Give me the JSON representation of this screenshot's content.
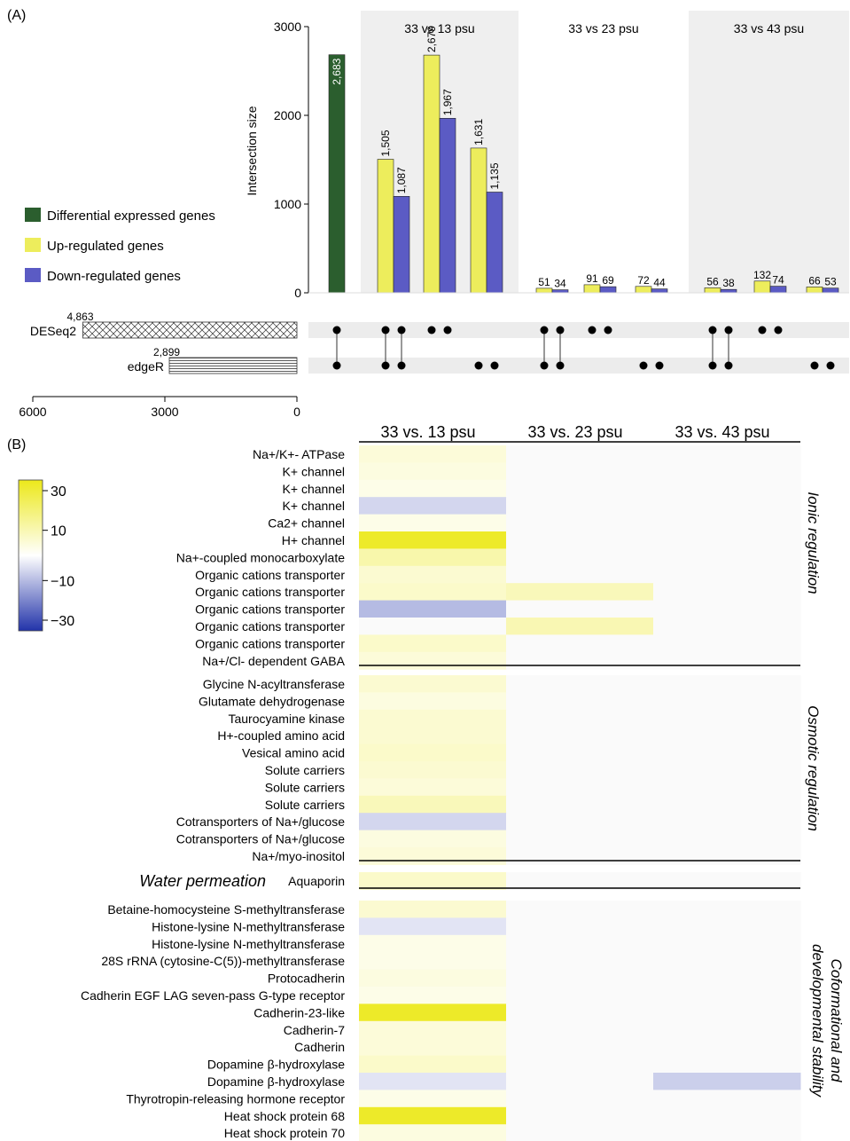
{
  "colors": {
    "green": "#2b5e2e",
    "yellow": "#eded5c",
    "blue": "#5b5bc4",
    "band_shade": "#efefef",
    "row_shade": "#ececec",
    "heat_low": "#2233aa",
    "heat_mid": "#ffffff",
    "heat_high": "#ece81a"
  },
  "panel_a": {
    "label": "(A)",
    "legend": [
      {
        "label": "Differential expressed genes",
        "color": "green"
      },
      {
        "label": "Up-regulated genes",
        "color": "yellow"
      },
      {
        "label": "Down-regulated genes",
        "color": "blue"
      }
    ],
    "set_labels": [
      {
        "name": "DESeq2",
        "count": "4,863"
      },
      {
        "name": "edgeR",
        "count": "2,899"
      }
    ],
    "set_axis_ticks": [
      "6000",
      "3000",
      "0"
    ]
  },
  "panel_b": {
    "label": "(B)",
    "colorbar_ticks": [
      "30",
      "10",
      "−10",
      "−30"
    ],
    "section_labels": [
      "Ionic regulation",
      "Osmotic regulation",
      "Coformational and",
      "developmental stability"
    ],
    "water_label": "Water permeation"
  },
  "chart_data": [
    {
      "type": "bar",
      "subtype": "upset",
      "ylabel": "Intersection size",
      "ylim": [
        0,
        3000
      ],
      "yticks": [
        0,
        1000,
        2000,
        3000
      ],
      "groups": [
        "33 vs 13 psu",
        "33 vs 23 psu",
        "33 vs 43 psu"
      ],
      "set_sizes": {
        "DESeq2": 4863,
        "edgeR": 2899
      },
      "set_axis_range": [
        6000,
        0
      ],
      "columns": [
        {
          "group": null,
          "sets": [
            "DESeq2",
            "edgeR"
          ],
          "bars": [
            {
              "series": "Differential expressed genes",
              "value": 2683,
              "label": "2,683"
            }
          ]
        },
        {
          "group": "33 vs 13 psu",
          "sets": [
            "DESeq2",
            "edgeR"
          ],
          "bars": [
            {
              "series": "Up-regulated genes",
              "value": 1505,
              "label": "1,505"
            },
            {
              "series": "Down-regulated genes",
              "value": 1087,
              "label": "1,087"
            }
          ]
        },
        {
          "group": "33 vs 13 psu",
          "sets": [
            "DESeq2"
          ],
          "bars": [
            {
              "series": "Up-regulated genes",
              "value": 2679,
              "label": "2,679"
            },
            {
              "series": "Down-regulated genes",
              "value": 1967,
              "label": "1,967"
            }
          ]
        },
        {
          "group": "33 vs 13 psu",
          "sets": [
            "edgeR"
          ],
          "bars": [
            {
              "series": "Up-regulated genes",
              "value": 1631,
              "label": "1,631"
            },
            {
              "series": "Down-regulated genes",
              "value": 1135,
              "label": "1,135"
            }
          ]
        },
        {
          "group": "33 vs 23 psu",
          "sets": [
            "DESeq2",
            "edgeR"
          ],
          "bars": [
            {
              "series": "Up-regulated genes",
              "value": 51,
              "label": "51"
            },
            {
              "series": "Down-regulated genes",
              "value": 34,
              "label": "34"
            }
          ]
        },
        {
          "group": "33 vs 23 psu",
          "sets": [
            "DESeq2"
          ],
          "bars": [
            {
              "series": "Up-regulated genes",
              "value": 91,
              "label": "91"
            },
            {
              "series": "Down-regulated genes",
              "value": 69,
              "label": "69"
            }
          ]
        },
        {
          "group": "33 vs 23 psu",
          "sets": [
            "edgeR"
          ],
          "bars": [
            {
              "series": "Up-regulated genes",
              "value": 72,
              "label": "72"
            },
            {
              "series": "Down-regulated genes",
              "value": 44,
              "label": "44"
            }
          ]
        },
        {
          "group": "33 vs 43 psu",
          "sets": [
            "DESeq2",
            "edgeR"
          ],
          "bars": [
            {
              "series": "Up-regulated genes",
              "value": 56,
              "label": "56"
            },
            {
              "series": "Down-regulated genes",
              "value": 38,
              "label": "38"
            }
          ]
        },
        {
          "group": "33 vs 43 psu",
          "sets": [
            "DESeq2"
          ],
          "bars": [
            {
              "series": "Up-regulated genes",
              "value": 132,
              "label": "132"
            },
            {
              "series": "Down-regulated genes",
              "value": 74,
              "label": "74"
            }
          ]
        },
        {
          "group": "33 vs 43 psu",
          "sets": [
            "edgeR"
          ],
          "bars": [
            {
              "series": "Up-regulated genes",
              "value": 66,
              "label": "66"
            },
            {
              "series": "Down-regulated genes",
              "value": 53,
              "label": "53"
            }
          ]
        }
      ]
    },
    {
      "type": "heatmap",
      "columns": [
        "33 vs. 13 psu",
        "33 vs. 23 psu",
        "33 vs. 43 psu"
      ],
      "colorbar_range": [
        -30,
        30
      ],
      "blank_value": 0,
      "sections": [
        {
          "name": "Ionic regulation",
          "rows": [
            {
              "label": "Na+/K+- ATPase",
              "values": [
                5,
                0,
                0
              ]
            },
            {
              "label": "K+ channel",
              "values": [
                4,
                0,
                0
              ]
            },
            {
              "label": "K+ channel",
              "values": [
                3,
                0,
                0
              ]
            },
            {
              "label": "K+ channel",
              "values": [
                -6,
                0,
                0
              ]
            },
            {
              "label": "Ca2+ channel",
              "values": [
                3,
                0,
                0
              ]
            },
            {
              "label": "H+ channel",
              "values": [
                28,
                0,
                0
              ]
            },
            {
              "label": "Na+-coupled monocarboxylate",
              "values": [
                11,
                0,
                0
              ]
            },
            {
              "label": "Organic cations transporter",
              "values": [
                6,
                0,
                0
              ]
            },
            {
              "label": "Organic cations transporter",
              "values": [
                7,
                9,
                0
              ]
            },
            {
              "label": "Organic cations transporter",
              "values": [
                -10,
                0,
                0
              ]
            },
            {
              "label": "Organic cations transporter",
              "values": [
                0,
                10,
                0
              ]
            },
            {
              "label": "Organic cations transporter",
              "values": [
                7,
                0,
                0
              ]
            },
            {
              "label": "Na+/Cl- dependent GABA",
              "values": [
                5,
                0,
                0
              ]
            }
          ]
        },
        {
          "name": "Osmotic regulation",
          "rows": [
            {
              "label": "Glycine N-acyltransferase",
              "values": [
                6,
                0,
                0
              ]
            },
            {
              "label": "Glutamate dehydrogenase",
              "values": [
                4,
                0,
                0
              ]
            },
            {
              "label": "Taurocyamine kinase",
              "values": [
                6,
                0,
                0
              ]
            },
            {
              "label": "H+-coupled amino acid",
              "values": [
                6,
                0,
                0
              ]
            },
            {
              "label": "Vesical amino acid",
              "values": [
                7,
                0,
                0
              ]
            },
            {
              "label": "Solute carriers",
              "values": [
                6,
                0,
                0
              ]
            },
            {
              "label": "Solute carriers",
              "values": [
                5,
                0,
                0
              ]
            },
            {
              "label": "Solute carriers",
              "values": [
                9,
                0,
                0
              ]
            },
            {
              "label": "Cotransporters of Na+/glucose",
              "values": [
                -6,
                0,
                0
              ]
            },
            {
              "label": "Cotransporters of Na+/glucose",
              "values": [
                4,
                0,
                0
              ]
            },
            {
              "label": "Na+/myo-inositol",
              "values": [
                5,
                0,
                0
              ]
            }
          ]
        },
        {
          "name": "Water permeation",
          "rows": [
            {
              "label": "Aquaporin",
              "values": [
                7,
                0,
                0
              ]
            }
          ]
        },
        {
          "name": "Coformational and developmental stability",
          "rows": [
            {
              "label": "Betaine-homocysteine S-methyltransferase",
              "values": [
                6,
                0,
                0
              ]
            },
            {
              "label": "Histone-lysine N-methyltransferase",
              "values": [
                -4,
                0,
                0
              ]
            },
            {
              "label": "Histone-lysine N-methyltransferase",
              "values": [
                3,
                0,
                0
              ]
            },
            {
              "label": "28S rRNA (cytosine-C(5))-methyltransferase",
              "values": [
                3,
                0,
                0
              ]
            },
            {
              "label": "Protocadherin",
              "values": [
                4,
                0,
                0
              ]
            },
            {
              "label": "Cadherin EGF LAG seven-pass G-type receptor",
              "values": [
                3,
                0,
                0
              ]
            },
            {
              "label": "Cadherin-23-like",
              "values": [
                28,
                0,
                0
              ]
            },
            {
              "label": "Cadherin-7",
              "values": [
                5,
                0,
                0
              ]
            },
            {
              "label": "Cadherin",
              "values": [
                5,
                0,
                0
              ]
            },
            {
              "label": "Dopamine β-hydroxylase",
              "values": [
                7,
                0,
                0
              ]
            },
            {
              "label": "Dopamine β-hydroxylase",
              "values": [
                -4,
                0,
                -7
              ]
            },
            {
              "label": "Thyrotropin-releasing hormone receptor",
              "values": [
                3,
                0,
                0
              ]
            },
            {
              "label": "Heat shock protein 68",
              "values": [
                28,
                0,
                0
              ]
            },
            {
              "label": "Heat shock protein 70",
              "values": [
                4,
                0,
                0
              ]
            }
          ]
        }
      ]
    }
  ]
}
